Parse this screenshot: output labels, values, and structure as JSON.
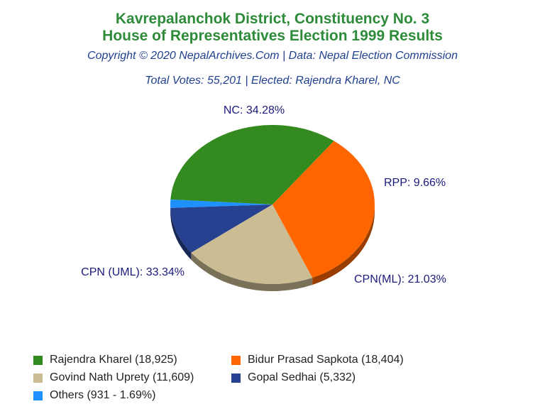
{
  "header": {
    "title_line1": "Kavrepalanchok District, Constituency No. 3",
    "title_line2": "House of Representatives Election 1999 Results",
    "copyright": "Copyright © 2020 NepalArchives.Com | Data: Nepal Election Commission",
    "summary": "Total Votes: 55,201 | Elected: Rajendra Kharel, NC"
  },
  "chart_data": {
    "type": "pie",
    "slices": [
      {
        "party": "NC",
        "percent": 34.28,
        "label": "NC: 34.28%",
        "color": "#338a1e"
      },
      {
        "party": "Others",
        "percent": 1.69,
        "label": "",
        "color": "#1e90ff"
      },
      {
        "party": "RPP",
        "percent": 9.66,
        "label": "RPP: 9.66%",
        "color": "#26418f"
      },
      {
        "party": "CPN(ML)",
        "percent": 21.03,
        "label": "CPN(ML): 21.03%",
        "color": "#ccbc94"
      },
      {
        "party": "CPN (UML)",
        "percent": 33.34,
        "label": "CPN (UML): 33.34%",
        "color": "#ff6600"
      }
    ],
    "legend": [
      {
        "text": "Rajendra Kharel (18,925)",
        "color": "#338a1e"
      },
      {
        "text": "Bidur Prasad Sapkota (18,404)",
        "color": "#ff6600"
      },
      {
        "text": "Govind Nath Uprety (11,609)",
        "color": "#ccbc94"
      },
      {
        "text": "Gopal Sedhai (5,332)",
        "color": "#26418f"
      },
      {
        "text": "Others (931 - 1.69%)",
        "color": "#1e90ff"
      }
    ],
    "legend_position": "bottom"
  }
}
